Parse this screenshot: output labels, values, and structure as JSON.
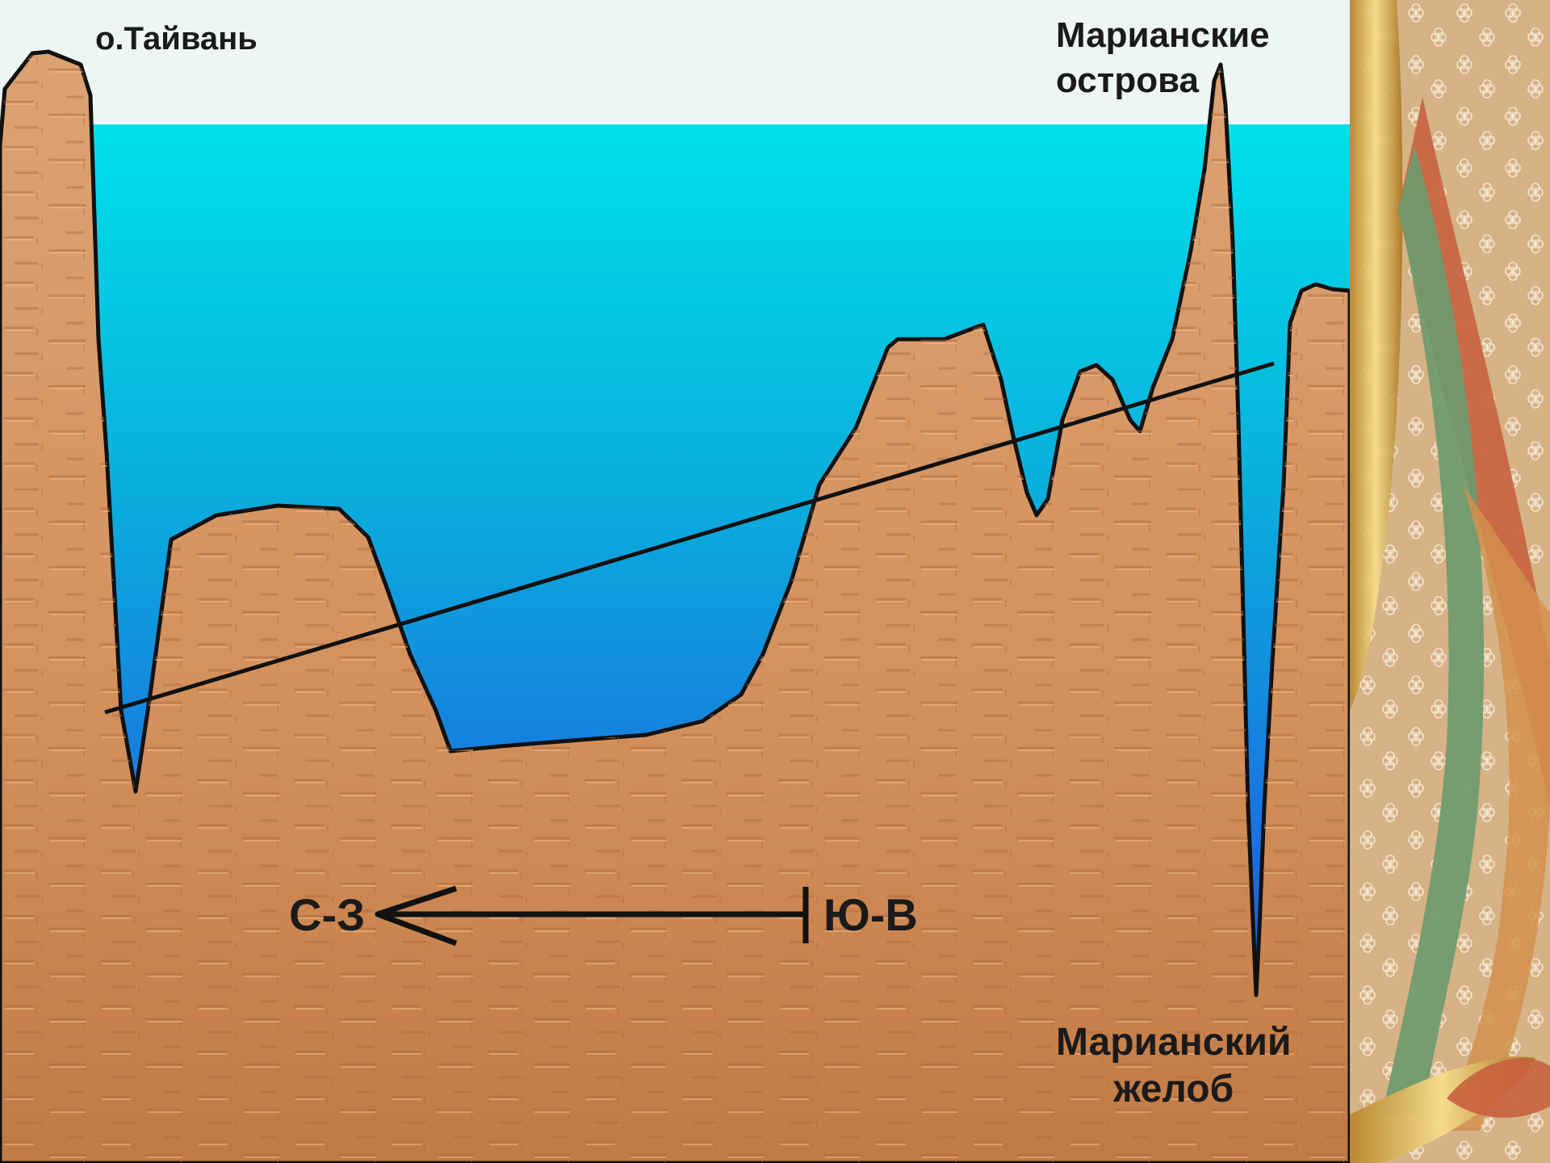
{
  "labels": {
    "taiwan": "о.Тайвань",
    "mariana_islands_line1": "Марианские",
    "mariana_islands_line2": "острова",
    "mariana_trench_line1": "Марианский",
    "mariana_trench_line2": "желоб",
    "direction_nw": "С-З",
    "direction_se": "Ю-В"
  },
  "colors": {
    "sky": "#eef5f5",
    "water_top": "#00dde8",
    "water_bottom": "#1c5ee0",
    "rock": "#d99a66",
    "rock_dark": "#a86a3a",
    "outline": "#111111",
    "panel_base": "#d8b48a"
  }
}
